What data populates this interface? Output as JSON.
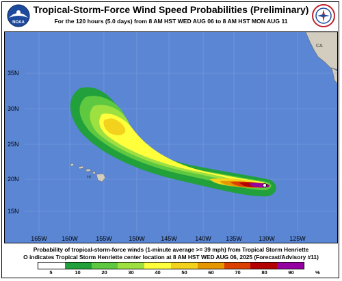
{
  "header": {
    "title": "Tropical-Storm-Force Wind Speed Probabilities (Preliminary)",
    "subtitle": "For the 120 hours (5.0 days) from 8 AM HST WED AUG 06 to 8 AM HST MON AUG 11"
  },
  "logos": {
    "left": {
      "text": "NOAA",
      "icon": "noaa-logo-icon"
    },
    "right": {
      "icon": "nws-logo-icon"
    }
  },
  "map": {
    "ocean_color": "#5a86d4",
    "land_color": "#d2cdbf",
    "lat_labels": [
      "35N",
      "30N",
      "25N",
      "20N",
      "15N"
    ],
    "lon_labels": [
      "165W",
      "160W",
      "155W",
      "150W",
      "145W",
      "140W",
      "135W",
      "130W",
      "125W"
    ],
    "state_label": "CA",
    "island_label": "HI",
    "storm_marker": "O"
  },
  "footer": {
    "line1": "Probability of tropical-storm-force winds (1-minute average >= 39 mph) from Tropical Storm Henriette",
    "line2": "O indicates Tropical Storm Henriette center location at 8 AM HST WED AUG 06, 2025 (Forecast/Advisory #11)"
  },
  "legend": {
    "colors": [
      "#ffffff",
      "#21a03c",
      "#5ec840",
      "#9ee040",
      "#ffff3c",
      "#f2d21c",
      "#e69600",
      "#dc4000",
      "#b40000",
      "#9600a0"
    ],
    "labels": [
      "5",
      "10",
      "20",
      "30",
      "40",
      "50",
      "60",
      "70",
      "80",
      "90",
      "%"
    ]
  }
}
